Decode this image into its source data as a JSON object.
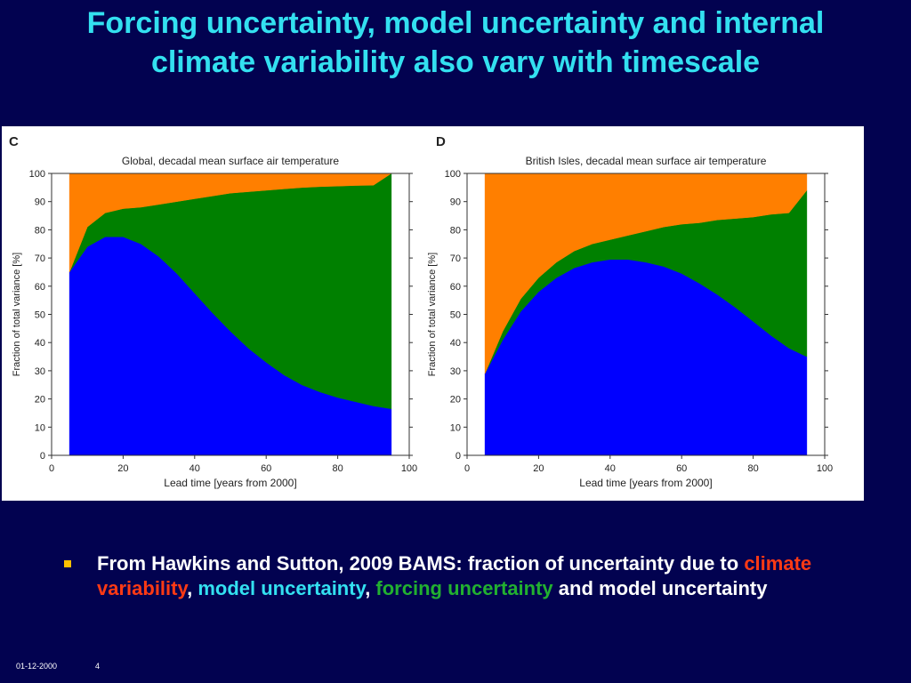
{
  "slide": {
    "title_line1": "Forcing uncertainty, model uncertainty and internal",
    "title_line2": "climate variability also vary with timescale"
  },
  "bullet": {
    "part1": "From Hawkins and Sutton, 2009 BAMS: fraction of uncertainty due to ",
    "climate_variability": "climate variability",
    "sep1": ", ",
    "model_uncertainty": "model uncertainty",
    "sep2": ", ",
    "forcing_uncertainty": "forcing uncertainty",
    "part_end": " and model uncertainty"
  },
  "footer": {
    "date": "01-12-2000",
    "page": "4"
  },
  "colors": {
    "background": "#020250",
    "title": "#33e0f0",
    "internal_variability": "#ff7f00",
    "model_uncertainty": "#008000",
    "scenario_uncertainty": "#0000ff",
    "bullet_marker": "#ffc000"
  },
  "chart_data": [
    {
      "type": "area",
      "panel_label": "C",
      "title": "Global, decadal mean surface air temperature",
      "xlabel": "Lead time  [years from 2000]",
      "ylabel": "Fraction of total variance  [%]",
      "xlim": [
        0,
        100
      ],
      "ylim": [
        0,
        100
      ],
      "xticks": [
        0,
        20,
        40,
        60,
        80,
        100
      ],
      "yticks": [
        0,
        10,
        20,
        30,
        40,
        50,
        60,
        70,
        80,
        90,
        100
      ],
      "stacked": true,
      "x": [
        5,
        10,
        15,
        20,
        25,
        30,
        35,
        40,
        45,
        50,
        55,
        60,
        65,
        70,
        75,
        80,
        85,
        90,
        95
      ],
      "series": [
        {
          "color": "#0000ff",
          "values": [
            65,
            74,
            77.5,
            77.5,
            75,
            70.5,
            64.5,
            57.5,
            50.5,
            44,
            38,
            33,
            28.5,
            25,
            22.5,
            20.5,
            19,
            17.5,
            16.5
          ]
        },
        {
          "color": "#008000",
          "values": [
            0,
            7,
            8.5,
            10,
            13,
            18.5,
            25.5,
            33.5,
            41.5,
            49,
            55.5,
            61,
            66,
            70,
            72.8,
            75,
            76.7,
            78.3,
            83.5
          ]
        },
        {
          "color": "#ff7f00",
          "values": [
            35,
            19,
            14,
            12.5,
            12,
            11,
            10,
            9,
            8,
            7,
            6.5,
            6,
            5.5,
            5,
            4.7,
            4.5,
            4.3,
            4.2,
            0
          ]
        }
      ]
    },
    {
      "type": "area",
      "panel_label": "D",
      "title": "British Isles, decadal mean surface air temperature",
      "xlabel": "Lead time  [years from 2000]",
      "ylabel": "Fraction of total variance  [%]",
      "xlim": [
        0,
        100
      ],
      "ylim": [
        0,
        100
      ],
      "xticks": [
        0,
        20,
        40,
        60,
        80,
        100
      ],
      "yticks": [
        0,
        10,
        20,
        30,
        40,
        50,
        60,
        70,
        80,
        90,
        100
      ],
      "stacked": true,
      "x": [
        5,
        10,
        15,
        20,
        25,
        30,
        35,
        40,
        45,
        50,
        55,
        60,
        65,
        70,
        75,
        80,
        85,
        90,
        95
      ],
      "series": [
        {
          "color": "#0000ff",
          "values": [
            29,
            41,
            51,
            58,
            63,
            66.5,
            68.5,
            69.5,
            69.5,
            68.5,
            67,
            64.5,
            61,
            57,
            52.5,
            47.5,
            42.5,
            38,
            35
          ]
        },
        {
          "color": "#008000",
          "values": [
            0,
            3,
            4.5,
            5,
            5.5,
            6,
            6.5,
            7,
            8.5,
            11,
            14,
            17.5,
            21.5,
            26.5,
            31.5,
            37,
            43,
            48,
            59
          ]
        },
        {
          "color": "#ff7f00",
          "values": [
            71,
            56,
            44.5,
            37,
            31.5,
            27.5,
            25,
            23.5,
            22,
            20.5,
            19,
            18,
            17.5,
            16.5,
            16,
            15.5,
            14.5,
            14,
            6
          ]
        }
      ]
    }
  ]
}
